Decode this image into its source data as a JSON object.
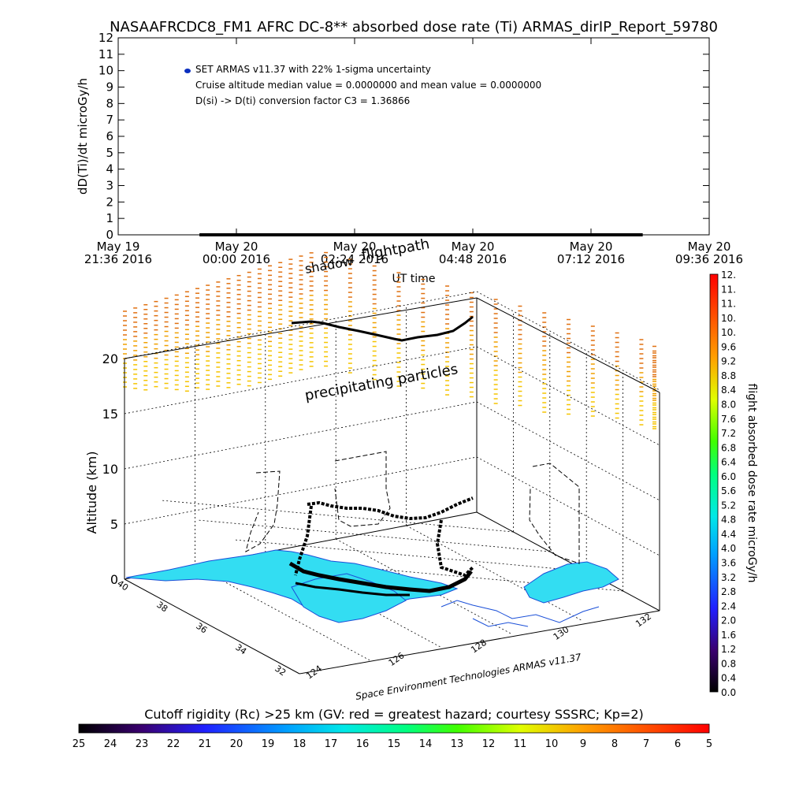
{
  "title": "NASAAFRCDC8_FM1 AFRC DC-8** absorbed dose rate (Ti) ARMAS_dirIP_Report_59780",
  "top_plot": {
    "ylabel": "dD(Ti)/dt microGy/h",
    "yticks": [
      "0",
      "1",
      "2",
      "3",
      "4",
      "5",
      "6",
      "7",
      "8",
      "9",
      "10",
      "11",
      "12"
    ],
    "xticks": [
      {
        "line1": "May 19",
        "line2": "21:36 2016"
      },
      {
        "line1": "May 20",
        "line2": "00:00 2016"
      },
      {
        "line1": "May 20",
        "line2": "02:24 2016"
      },
      {
        "line1": "May 20",
        "line2": "04:48 2016"
      },
      {
        "line1": "May 20",
        "line2": "07:12 2016"
      },
      {
        "line1": "May 20",
        "line2": "09:36 2016"
      }
    ],
    "xlabel": "UT time",
    "legend": [
      "SET ARMAS v11.37 with 22% 1-sigma uncertainty",
      "Cruise altitude median value = 0.0000000 and mean value = 0.0000000",
      "D(si) -> D(ti) conversion factor C3 = 1.36866"
    ],
    "series_color": "#0b2fbf"
  },
  "chart_data": {
    "type": "line",
    "title": "NASAAFRCDC8_FM1 AFRC DC-8** absorbed dose rate (Ti) ARMAS_dirIP_Report_59780",
    "xlabel": "UT time",
    "ylabel": "dD(Ti)/dt microGy/h",
    "ylim": [
      0,
      12
    ],
    "xlim": [
      "2016-05-19 21:36",
      "2016-05-20 09:36"
    ],
    "series": [
      {
        "name": "SET ARMAS v11.37 with 22% 1-sigma uncertainty",
        "x_start": "2016-05-19 23:15",
        "x_end": "2016-05-20 08:15",
        "values": [
          0,
          0
        ]
      }
    ],
    "legend_position": "top-left"
  },
  "scene_3d": {
    "annotations": {
      "shadow": "shadow",
      "flightpath": "flightpath",
      "precip": "precipitating particles",
      "credit": "Space Environment Technologies ARMAS v11.37"
    },
    "altitude_label": "Altitude (km)",
    "altitude_ticks": [
      "0",
      "5",
      "10",
      "15",
      "20"
    ],
    "lat_ticks": [
      "40",
      "38",
      "36",
      "34",
      "32"
    ],
    "lon_ticks": [
      "124",
      "126",
      "128",
      "130",
      "132"
    ],
    "land_color": "#33ddf2",
    "coast_color": "#1a4fd8"
  },
  "right_colorbar": {
    "label": "flight absorbed dose rate microGy/h",
    "ticks": [
      "0.0",
      "0.4",
      "0.8",
      "1.2",
      "1.6",
      "2.0",
      "2.4",
      "2.8",
      "3.2",
      "3.6",
      "4.0",
      "4.4",
      "4.8",
      "5.2",
      "5.6",
      "6.0",
      "6.4",
      "6.8",
      "7.2",
      "7.6",
      "8.0",
      "8.4",
      "8.8",
      "9.2",
      "9.6",
      "10.",
      "10.",
      "11.",
      "11.",
      "12."
    ]
  },
  "bottom_colorbar": {
    "label": "Cutoff rigidity (Rc) >25 km (GV: red = greatest hazard; courtesy SSSRC; Kp=2)",
    "ticks": [
      "25",
      "24",
      "23",
      "22",
      "21",
      "20",
      "19",
      "18",
      "17",
      "16",
      "15",
      "14",
      "13",
      "12",
      "11",
      "10",
      "9",
      "8",
      "7",
      "6",
      "5"
    ]
  }
}
